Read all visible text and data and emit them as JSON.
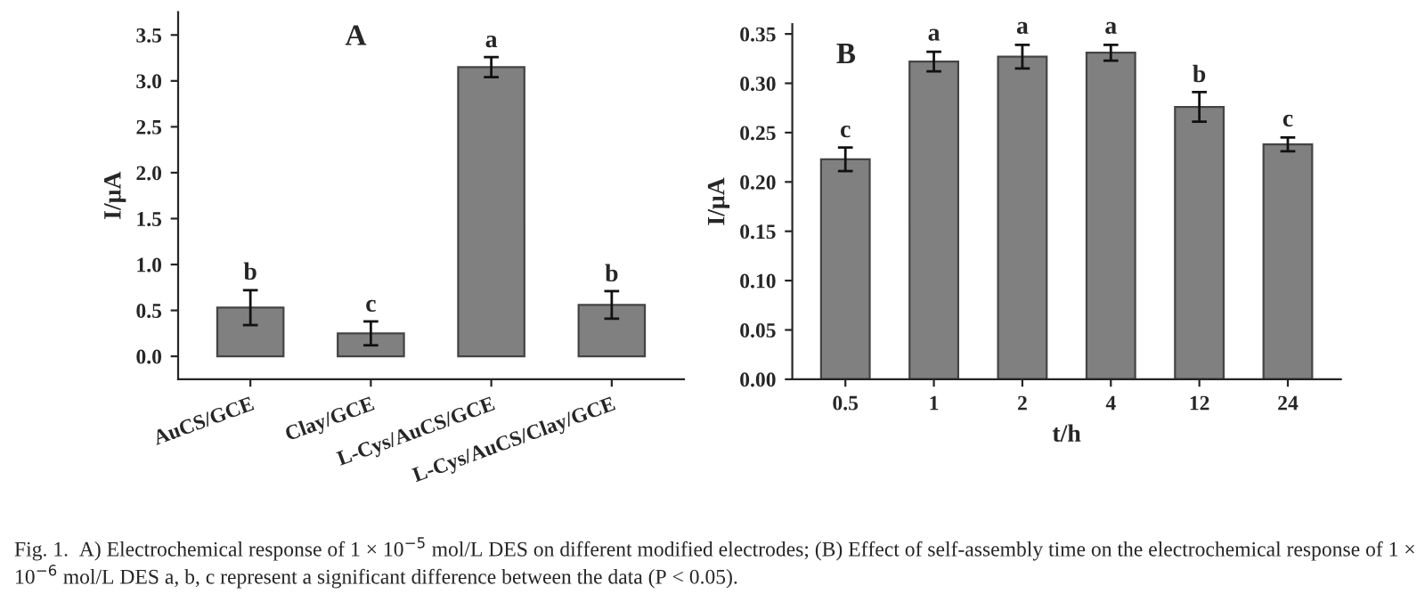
{
  "chart_data": [
    {
      "type": "bar",
      "ylabel": "I/μA",
      "categories": [
        "AuCS/GCE",
        "Clay/GCE",
        "L-Cys/AuCS/GCE",
        "L-Cys/AuCS/Clay/GCE"
      ],
      "values": [
        0.53,
        0.25,
        3.15,
        0.56
      ],
      "errors": [
        0.19,
        0.13,
        0.11,
        0.15
      ],
      "color": "#808080",
      "ylim": [
        -0.25,
        3.75
      ],
      "yticks": [
        {
          "value": 0,
          "label": "0.0"
        },
        0.5,
        {
          "value": 1,
          "label": "1.0"
        },
        1.5,
        {
          "value": 2,
          "label": "2.0"
        },
        2.5,
        {
          "value": 3,
          "label": "3.0"
        },
        3.5
      ],
      "annotations": [
        "A",
        {
          "text": "b",
          "x": "AuCS/GCE",
          "y": 0.78
        },
        {
          "text": "c",
          "x": "Clay/GCE",
          "y": 0.43
        },
        {
          "text": "a",
          "x": "L-Cys/AuCS/GCE",
          "y": 3.31
        },
        {
          "text": "b",
          "x": "L-Cys/AuCS/Clay/GCE",
          "y": 0.76
        },
        "Fig. 1.  A) Electrochemical response of 1 × 10$^{−5}$ mol/L DES on different modified electrodes; (B) Effect of self-assembly time on the electrochemical response of 1 × 10$^{−6}$ mol/L DES a, b, c represent a significant difference between the data (P < 0.05)."
      ],
      "grid": false,
      "legend": false
    },
    {
      "type": "bar",
      "xlabel": "t/h",
      "ylabel": "I/μA",
      "categories": [
        "0.5",
        "1",
        "2",
        "4",
        "12",
        "24"
      ],
      "values": [
        0.223,
        0.322,
        0.327,
        0.331,
        0.276,
        0.238
      ],
      "errors": [
        0.012,
        0.01,
        0.012,
        0.008,
        0.015,
        0.007
      ],
      "color": "#808080",
      "ylim": [
        0,
        0.36
      ],
      "yticks": [
        {
          "value": 0,
          "label": "0.00"
        },
        0.05,
        {
          "value": 0.1,
          "label": "0.10"
        },
        0.15,
        {
          "value": 0.2,
          "label": "0.20"
        },
        0.25,
        {
          "value": 0.3,
          "label": "0.30"
        },
        0.35
      ],
      "annotations": [
        "B",
        {
          "text": "c",
          "x": "0.5",
          "y": 0.24
        },
        {
          "text": "a",
          "x": "1",
          "y": 0.338
        },
        {
          "text": "a",
          "x": "2",
          "y": 0.345
        },
        {
          "text": "a",
          "x": "4",
          "y": 0.345
        },
        {
          "text": "b",
          "x": "12",
          "y": 0.296
        },
        {
          "text": "c",
          "x": "24",
          "y": 0.251
        }
      ],
      "grid": false,
      "legend": false
    }
  ]
}
